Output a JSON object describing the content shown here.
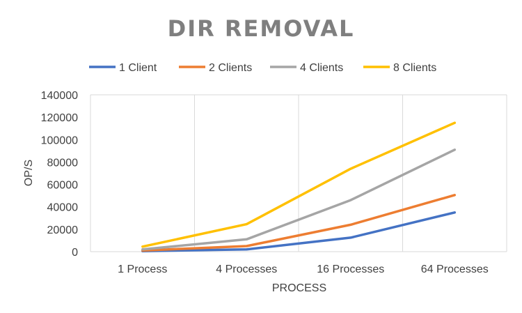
{
  "chart_data": {
    "type": "line",
    "title": "DIR REMOVAL",
    "xlabel": "PROCESS",
    "ylabel": "OP/S",
    "categories": [
      "1 Process",
      "4 Processes",
      "16 Processes",
      "64 Processes"
    ],
    "ylim": [
      0,
      140000
    ],
    "yticks": [
      0,
      20000,
      40000,
      60000,
      80000,
      100000,
      120000,
      140000
    ],
    "grid": "vertical",
    "legend": "top",
    "series": [
      {
        "name": "1 Client",
        "color": "#4472c4",
        "values": [
          500,
          2000,
          12500,
          35000
        ]
      },
      {
        "name": "2 Clients",
        "color": "#ed7d31",
        "values": [
          1000,
          5000,
          24000,
          50500
        ]
      },
      {
        "name": "4 Clients",
        "color": "#a5a5a5",
        "values": [
          2000,
          11000,
          46000,
          91000
        ]
      },
      {
        "name": "8 Clients",
        "color": "#ffc000",
        "values": [
          4500,
          24500,
          74000,
          115000
        ]
      }
    ]
  }
}
